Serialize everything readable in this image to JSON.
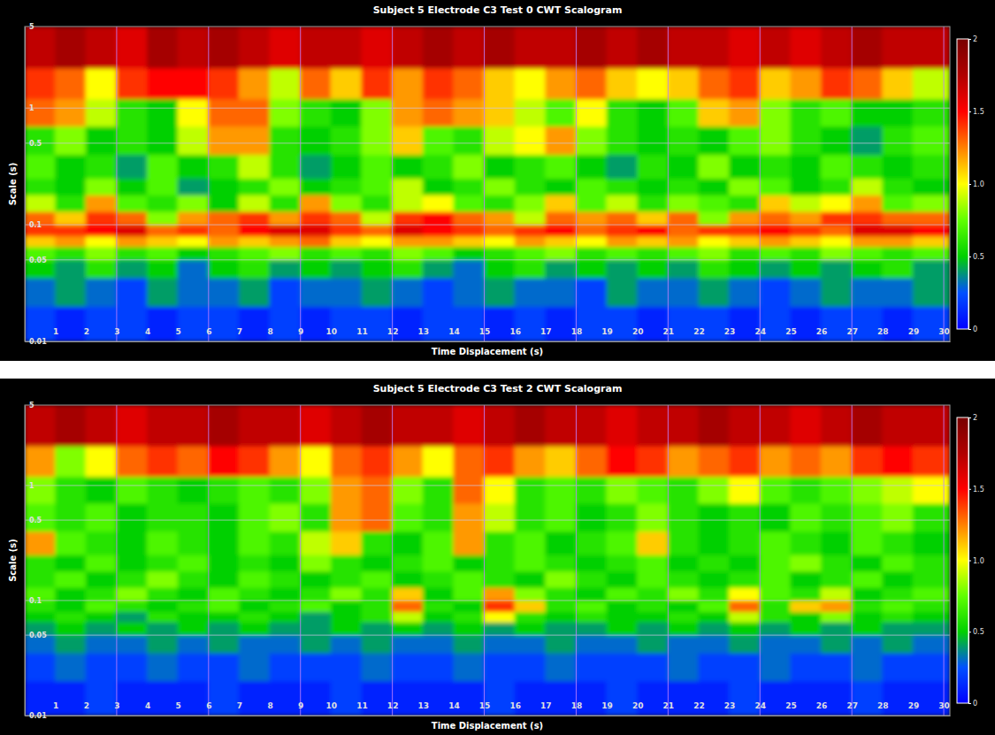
{
  "chart_data": [
    {
      "type": "heatmap",
      "title": "Subject 5 Electrode C3 Test 0 CWT Scalogram",
      "x_label": "Time Displacement (s)",
      "y_label": "Scale (s)",
      "xlim": [
        0,
        30.2
      ],
      "xticks": [
        1,
        2,
        3,
        4,
        5,
        6,
        7,
        8,
        9,
        10,
        11,
        12,
        13,
        14,
        15,
        16,
        17,
        18,
        19,
        20,
        21,
        22,
        23,
        24,
        25,
        26,
        27,
        28,
        29,
        30
      ],
      "ylim": [
        0.01,
        5
      ],
      "yticks": [
        5,
        1,
        0.5,
        0.1,
        0.05,
        0.01
      ],
      "log": "y",
      "grid": true,
      "x_edges": [
        0,
        1,
        2,
        3,
        4,
        5,
        6,
        7,
        8,
        9,
        10,
        11,
        12,
        13,
        14,
        15,
        16,
        17,
        18,
        19,
        20,
        21,
        22,
        23,
        24,
        25,
        26,
        27,
        28,
        29,
        30.2
      ],
      "y_edges": [
        0.01,
        0.02,
        0.035,
        0.05,
        0.065,
        0.08,
        0.1,
        0.13,
        0.18,
        0.25,
        0.4,
        0.7,
        1.2,
        2.2,
        5
      ],
      "cells": [
        [
          0.2,
          0.1,
          0.2,
          0.2,
          0.1,
          0.2,
          0.2,
          0.1,
          0.2,
          0.1,
          0.2,
          0.2,
          0.1,
          0.2,
          0.2,
          0.1,
          0.2,
          0.1,
          0.2,
          0.2,
          0.1,
          0.2,
          0.2,
          0.1,
          0.2,
          0.1,
          0.2,
          0.2,
          0.1,
          0.2
        ],
        [
          0.3,
          0.4,
          0.3,
          0.2,
          0.4,
          0.3,
          0.3,
          0.4,
          0.2,
          0.3,
          0.3,
          0.4,
          0.3,
          0.2,
          0.3,
          0.4,
          0.3,
          0.3,
          0.2,
          0.4,
          0.3,
          0.3,
          0.4,
          0.3,
          0.2,
          0.3,
          0.4,
          0.3,
          0.3,
          0.4
        ],
        [
          0.5,
          0.4,
          0.6,
          0.4,
          0.5,
          0.3,
          0.5,
          0.6,
          0.4,
          0.5,
          0.4,
          0.5,
          0.6,
          0.4,
          0.3,
          0.5,
          0.6,
          0.4,
          0.5,
          0.4,
          0.5,
          0.4,
          0.6,
          0.5,
          0.4,
          0.5,
          0.4,
          0.5,
          0.6,
          0.4
        ],
        [
          0.7,
          0.6,
          0.8,
          0.6,
          0.7,
          0.5,
          0.6,
          0.7,
          0.8,
          0.6,
          0.7,
          0.6,
          0.8,
          0.7,
          0.5,
          0.6,
          0.7,
          0.8,
          0.6,
          0.7,
          0.6,
          0.7,
          0.8,
          0.6,
          0.7,
          0.6,
          0.8,
          0.7,
          0.6,
          0.7
        ],
        [
          1.1,
          1.2,
          1.0,
          1.2,
          1.1,
          1.0,
          1.2,
          1.1,
          1.2,
          1.3,
          1.1,
          1.0,
          1.2,
          1.2,
          1.1,
          1.0,
          1.2,
          1.1,
          1.0,
          1.2,
          1.1,
          1.2,
          1.0,
          1.1,
          1.2,
          1.1,
          1.0,
          1.2,
          1.2,
          1.1
        ],
        [
          1.4,
          1.4,
          1.5,
          1.6,
          1.3,
          1.4,
          1.3,
          1.5,
          1.6,
          1.6,
          1.4,
          1.3,
          1.6,
          1.5,
          1.4,
          1.3,
          1.4,
          1.5,
          1.3,
          1.4,
          1.5,
          1.3,
          1.4,
          1.4,
          1.5,
          1.4,
          1.3,
          1.6,
          1.6,
          1.5
        ],
        [
          1.3,
          1.1,
          1.4,
          1.3,
          0.8,
          1.2,
          1.3,
          1.4,
          1.2,
          1.4,
          1.3,
          0.9,
          1.4,
          1.5,
          1.3,
          1.2,
          0.9,
          1.3,
          1.2,
          1.3,
          1.1,
          1.3,
          0.8,
          1.2,
          1.3,
          1.2,
          1.4,
          1.4,
          1.3,
          1.3
        ],
        [
          0.9,
          0.6,
          1.2,
          0.7,
          0.6,
          0.8,
          0.5,
          0.9,
          0.6,
          1.2,
          0.8,
          0.6,
          0.9,
          1.0,
          0.7,
          0.6,
          0.8,
          1.1,
          0.7,
          0.9,
          0.6,
          0.8,
          0.7,
          0.6,
          1.1,
          0.9,
          1.0,
          1.2,
          0.7,
          0.8
        ],
        [
          0.6,
          0.5,
          0.8,
          0.5,
          0.7,
          0.4,
          0.5,
          0.6,
          0.8,
          0.5,
          0.6,
          0.7,
          0.9,
          0.5,
          0.6,
          0.8,
          0.6,
          0.5,
          0.7,
          0.6,
          0.5,
          0.6,
          0.5,
          0.8,
          0.7,
          0.5,
          0.6,
          0.9,
          0.6,
          0.5
        ],
        [
          0.7,
          0.5,
          0.6,
          0.4,
          0.7,
          0.5,
          0.6,
          0.9,
          0.6,
          0.4,
          0.5,
          0.7,
          0.5,
          0.6,
          0.8,
          0.5,
          0.6,
          0.7,
          0.5,
          0.4,
          0.6,
          0.5,
          0.8,
          0.5,
          0.6,
          0.5,
          0.7,
          0.6,
          0.5,
          0.6
        ],
        [
          0.6,
          0.8,
          0.5,
          0.6,
          0.5,
          0.9,
          1.2,
          1.2,
          0.6,
          0.5,
          0.6,
          0.8,
          1.1,
          0.7,
          0.6,
          0.9,
          1.0,
          1.2,
          0.8,
          0.6,
          0.5,
          0.6,
          0.5,
          0.7,
          0.8,
          0.6,
          0.5,
          0.4,
          0.6,
          0.7
        ],
        [
          1.3,
          1.2,
          0.9,
          0.6,
          0.5,
          1.0,
          1.3,
          1.3,
          0.8,
          0.6,
          0.5,
          0.8,
          1.2,
          1.3,
          1.2,
          1.1,
          0.9,
          0.7,
          1.0,
          0.6,
          0.5,
          0.7,
          1.1,
          1.2,
          0.8,
          0.6,
          0.7,
          0.5,
          0.5,
          0.6
        ],
        [
          1.4,
          1.3,
          1.0,
          1.4,
          1.5,
          1.5,
          1.4,
          1.2,
          0.9,
          1.3,
          1.1,
          1.4,
          1.2,
          1.4,
          1.3,
          1.1,
          1.0,
          1.2,
          1.3,
          1.1,
          1.0,
          1.1,
          1.3,
          1.4,
          1.1,
          1.2,
          1.4,
          1.3,
          1.1,
          0.9
        ],
        [
          1.7,
          1.8,
          1.7,
          1.6,
          1.8,
          1.7,
          1.8,
          1.7,
          1.6,
          1.7,
          1.7,
          1.6,
          1.7,
          1.8,
          1.7,
          1.8,
          1.7,
          1.7,
          1.8,
          1.7,
          1.8,
          1.7,
          1.7,
          1.6,
          1.7,
          1.6,
          1.7,
          1.8,
          1.7,
          1.7
        ]
      ],
      "colorbar": {
        "range": [
          0,
          2
        ],
        "ticks": [
          0,
          0.5,
          {
            "value": 1,
            "label": "1.0"
          },
          1.5,
          2
        ]
      }
    },
    {
      "type": "heatmap",
      "title": "Subject 5 Electrode C3 Test 2 CWT Scalogram",
      "x_label": "Time Displacement (s)",
      "y_label": "Scale (s)",
      "xlim": [
        0,
        30.2
      ],
      "xticks": [
        1,
        2,
        3,
        4,
        5,
        6,
        7,
        8,
        9,
        10,
        11,
        12,
        13,
        14,
        15,
        16,
        17,
        18,
        19,
        20,
        21,
        22,
        23,
        24,
        25,
        26,
        27,
        28,
        29,
        30
      ],
      "ylim": [
        0.01,
        5
      ],
      "yticks": [
        5,
        1,
        0.5,
        0.1,
        0.05,
        0.01
      ],
      "log": "y",
      "grid": true,
      "x_edges": [
        0,
        1,
        2,
        3,
        4,
        5,
        6,
        7,
        8,
        9,
        10,
        11,
        12,
        13,
        14,
        15,
        16,
        17,
        18,
        19,
        20,
        21,
        22,
        23,
        24,
        25,
        26,
        27,
        28,
        29,
        30.2
      ],
      "y_edges": [
        0.01,
        0.02,
        0.035,
        0.05,
        0.065,
        0.08,
        0.1,
        0.13,
        0.18,
        0.25,
        0.4,
        0.7,
        1.2,
        2.2,
        5
      ],
      "cells": [
        [
          0.1,
          0.1,
          0.2,
          0.1,
          0.1,
          0.1,
          0.2,
          0.1,
          0.1,
          0.1,
          0.2,
          0.1,
          0.1,
          0.1,
          0.1,
          0.2,
          0.1,
          0.1,
          0.1,
          0.2,
          0.1,
          0.1,
          0.1,
          0.2,
          0.1,
          0.1,
          0.1,
          0.2,
          0.1,
          0.1
        ],
        [
          0.2,
          0.3,
          0.2,
          0.2,
          0.3,
          0.2,
          0.2,
          0.3,
          0.2,
          0.2,
          0.2,
          0.3,
          0.2,
          0.2,
          0.3,
          0.2,
          0.2,
          0.3,
          0.2,
          0.2,
          0.2,
          0.3,
          0.2,
          0.2,
          0.3,
          0.2,
          0.2,
          0.3,
          0.2,
          0.2
        ],
        [
          0.3,
          0.4,
          0.3,
          0.3,
          0.4,
          0.3,
          0.4,
          0.3,
          0.3,
          0.4,
          0.3,
          0.4,
          0.3,
          0.3,
          0.4,
          0.3,
          0.3,
          0.4,
          0.3,
          0.3,
          0.4,
          0.3,
          0.3,
          0.4,
          0.3,
          0.3,
          0.4,
          0.3,
          0.4,
          0.3
        ],
        [
          0.4,
          0.5,
          0.4,
          0.5,
          0.4,
          0.5,
          0.4,
          0.5,
          0.4,
          0.4,
          0.5,
          0.4,
          0.5,
          0.4,
          0.5,
          0.4,
          0.5,
          0.4,
          0.4,
          0.5,
          0.4,
          0.5,
          0.4,
          0.5,
          0.4,
          0.5,
          0.4,
          0.5,
          0.4,
          0.4
        ],
        [
          0.5,
          0.6,
          0.5,
          0.4,
          0.6,
          0.5,
          0.5,
          0.6,
          0.5,
          0.4,
          0.5,
          0.6,
          0.9,
          0.5,
          0.6,
          1.0,
          0.6,
          0.5,
          0.6,
          0.5,
          0.5,
          0.6,
          0.5,
          0.9,
          0.6,
          0.5,
          0.8,
          0.5,
          0.6,
          0.5
        ],
        [
          0.6,
          0.5,
          0.7,
          0.6,
          0.5,
          0.6,
          0.7,
          0.5,
          0.6,
          0.7,
          0.5,
          0.6,
          1.3,
          0.6,
          0.5,
          1.4,
          1.1,
          0.6,
          0.7,
          0.5,
          0.6,
          0.5,
          0.7,
          1.3,
          0.6,
          1.1,
          1.2,
          0.6,
          0.7,
          0.6
        ],
        [
          0.7,
          0.5,
          0.6,
          0.8,
          0.6,
          0.5,
          0.7,
          0.6,
          0.5,
          0.6,
          0.8,
          0.6,
          1.1,
          0.5,
          0.7,
          1.2,
          0.8,
          0.6,
          0.5,
          0.7,
          0.6,
          0.8,
          0.6,
          1.0,
          0.7,
          0.6,
          0.9,
          0.5,
          0.6,
          0.7
        ],
        [
          0.6,
          0.7,
          0.5,
          0.6,
          0.8,
          0.6,
          0.5,
          0.7,
          0.6,
          0.5,
          0.6,
          0.7,
          0.5,
          0.6,
          0.7,
          0.6,
          0.5,
          0.8,
          0.6,
          0.5,
          0.7,
          0.6,
          0.5,
          0.6,
          0.7,
          0.5,
          0.6,
          0.7,
          0.5,
          0.6
        ],
        [
          0.6,
          0.5,
          0.7,
          0.5,
          0.6,
          0.7,
          0.5,
          0.6,
          0.5,
          0.8,
          0.6,
          0.5,
          0.6,
          0.7,
          0.5,
          0.6,
          0.7,
          0.6,
          0.5,
          0.6,
          0.7,
          0.5,
          0.6,
          0.5,
          0.7,
          0.8,
          0.6,
          0.5,
          0.7,
          0.6
        ],
        [
          1.2,
          0.7,
          0.6,
          0.5,
          0.7,
          0.6,
          0.5,
          0.7,
          0.6,
          0.9,
          1.1,
          0.6,
          0.5,
          0.7,
          1.2,
          0.6,
          0.7,
          0.5,
          0.6,
          0.7,
          1.1,
          0.6,
          0.5,
          0.6,
          0.7,
          0.6,
          0.5,
          0.7,
          0.6,
          0.5
        ],
        [
          0.7,
          0.6,
          0.7,
          0.5,
          0.6,
          0.6,
          0.5,
          0.7,
          0.8,
          0.6,
          1.2,
          1.3,
          0.7,
          0.6,
          1.2,
          0.9,
          0.6,
          0.7,
          0.5,
          0.6,
          0.8,
          0.6,
          0.5,
          0.6,
          0.5,
          0.7,
          0.6,
          0.7,
          0.8,
          0.6
        ],
        [
          0.8,
          0.6,
          0.5,
          0.7,
          0.6,
          0.5,
          0.6,
          0.7,
          0.6,
          0.8,
          1.2,
          1.3,
          0.8,
          0.6,
          1.3,
          1.0,
          0.6,
          0.7,
          0.6,
          0.8,
          0.7,
          0.6,
          0.8,
          1.0,
          0.7,
          0.6,
          0.7,
          0.8,
          0.9,
          1.0
        ],
        [
          1.2,
          0.8,
          1.0,
          1.3,
          1.4,
          1.3,
          1.5,
          1.4,
          1.2,
          1.0,
          1.3,
          1.4,
          1.2,
          1.0,
          1.3,
          1.4,
          1.2,
          1.1,
          1.3,
          1.5,
          1.4,
          1.2,
          1.3,
          1.4,
          1.2,
          1.3,
          1.2,
          1.4,
          1.5,
          1.4
        ],
        [
          1.7,
          1.8,
          1.7,
          1.6,
          1.7,
          1.7,
          1.8,
          1.7,
          1.7,
          1.6,
          1.7,
          1.8,
          1.7,
          1.7,
          1.6,
          1.7,
          1.8,
          1.7,
          1.7,
          1.6,
          1.7,
          1.7,
          1.8,
          1.7,
          1.7,
          1.6,
          1.7,
          1.8,
          1.7,
          1.7
        ]
      ],
      "colorbar": {
        "range": [
          0,
          2
        ],
        "ticks": [
          0,
          0.5,
          {
            "value": 1,
            "label": "1.0"
          },
          1.5,
          2
        ]
      }
    }
  ]
}
